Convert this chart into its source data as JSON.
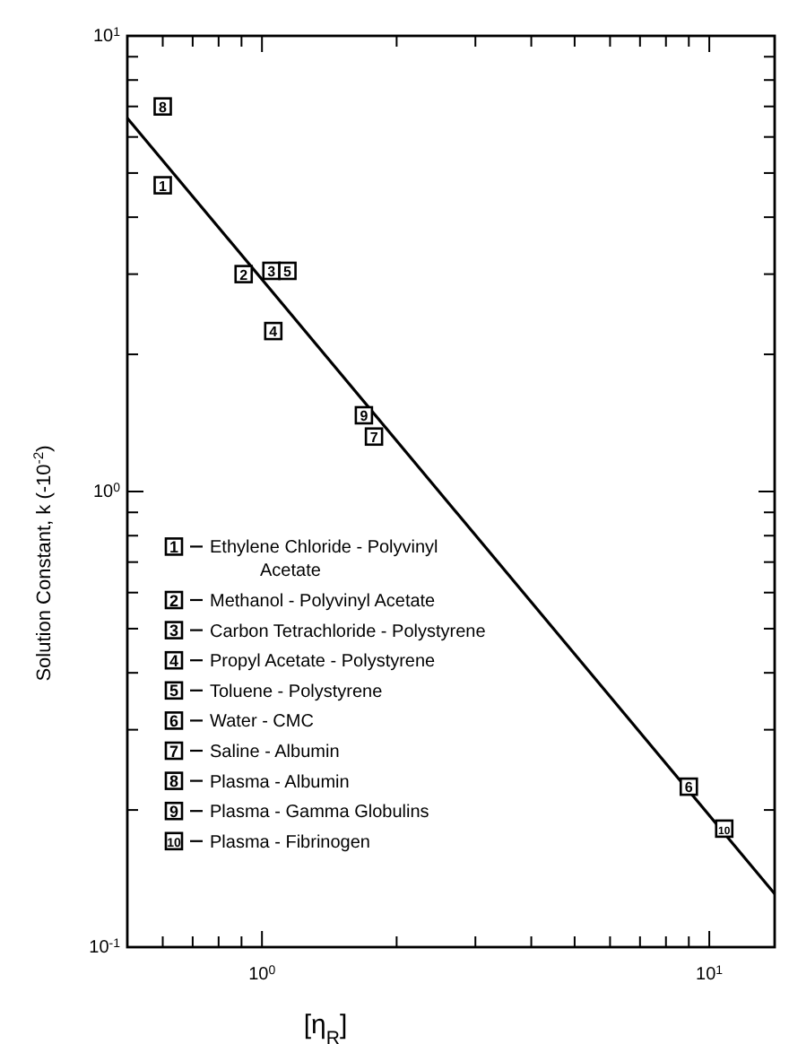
{
  "chart_data": {
    "type": "scatter",
    "xlabel": "[η$_{R}$]",
    "ylabel": "Solution Constant,  k  (-10$^{-2}$)",
    "log": "xy",
    "xlim": [
      0.5,
      14
    ],
    "ylim": [
      0.1,
      10
    ],
    "xticks": [
      {
        "value": 0.5,
        "label": null
      },
      {
        "value": 0.6,
        "label": null
      },
      {
        "value": 0.7,
        "label": null
      },
      {
        "value": 0.8,
        "label": null
      },
      {
        "value": 0.9,
        "label": null
      },
      {
        "value": 1,
        "label": "10$^{0}$"
      },
      {
        "value": 2,
        "label": null
      },
      {
        "value": 3,
        "label": null
      },
      {
        "value": 4,
        "label": null
      },
      {
        "value": 5,
        "label": null
      },
      {
        "value": 6,
        "label": null
      },
      {
        "value": 7,
        "label": null
      },
      {
        "value": 8,
        "label": null
      },
      {
        "value": 9,
        "label": null
      },
      {
        "value": 10,
        "label": "10$^{1}$"
      }
    ],
    "yticks": [
      {
        "value": 0.1,
        "label": "10$^{-1}$"
      },
      {
        "value": 0.2,
        "label": null
      },
      {
        "value": 0.3,
        "label": null
      },
      {
        "value": 0.4,
        "label": null
      },
      {
        "value": 0.5,
        "label": null
      },
      {
        "value": 0.6,
        "label": null
      },
      {
        "value": 0.7,
        "label": null
      },
      {
        "value": 0.8,
        "label": null
      },
      {
        "value": 0.9,
        "label": null
      },
      {
        "value": 1,
        "label": "10$^{0}$"
      },
      {
        "value": 2,
        "label": null
      },
      {
        "value": 3,
        "label": null
      },
      {
        "value": 4,
        "label": null
      },
      {
        "value": 5,
        "label": null
      },
      {
        "value": 6,
        "label": null
      },
      {
        "value": 7,
        "label": null
      },
      {
        "value": 8,
        "label": null
      },
      {
        "value": 9,
        "label": null
      },
      {
        "value": 10,
        "label": "10$^{1}$"
      }
    ],
    "grid": false,
    "legend": "bottom left",
    "marker": "square",
    "annotations": [
      {
        "text": "1",
        "x": 0.6,
        "y": 4.7
      },
      {
        "text": "2",
        "x": 0.91,
        "y": 3.0
      },
      {
        "text": "3",
        "x": 1.05,
        "y": 3.05
      },
      {
        "text": "4",
        "x": 1.06,
        "y": 2.25
      },
      {
        "text": "5",
        "x": 1.14,
        "y": 3.05
      },
      {
        "text": "6",
        "x": 9.0,
        "y": 0.225
      },
      {
        "text": "7",
        "x": 1.78,
        "y": 1.32
      },
      {
        "text": "8",
        "x": 0.6,
        "y": 7.0
      },
      {
        "text": "9",
        "x": 1.69,
        "y": 1.47
      },
      {
        "text": "10",
        "x": 10.8,
        "y": 0.182
      }
    ],
    "series": [
      {
        "name": "Ethylene Chloride - Polyvinyl Acetate",
        "color": "#000000",
        "x": [
          0.6
        ],
        "values": [
          4.7
        ]
      },
      {
        "name": "Methanol - Polyvinyl Acetate",
        "color": "#000000",
        "x": [
          0.91
        ],
        "values": [
          3.0
        ]
      },
      {
        "name": "Carbon Tetrachloride - Polystyrene",
        "color": "#000000",
        "x": [
          1.05
        ],
        "values": [
          3.05
        ]
      },
      {
        "name": "Propyl Acetate - Polystyrene",
        "color": "#000000",
        "x": [
          1.06
        ],
        "values": [
          2.25
        ]
      },
      {
        "name": "Toluene - Polystyrene",
        "color": "#000000",
        "x": [
          1.14
        ],
        "values": [
          3.05
        ]
      },
      {
        "name": "Water - CMC",
        "color": "#000000",
        "x": [
          9.0
        ],
        "values": [
          0.225
        ]
      },
      {
        "name": "Saline - Albumin",
        "color": "#000000",
        "x": [
          1.78
        ],
        "values": [
          1.32
        ]
      },
      {
        "name": "Plasma - Albumin",
        "color": "#000000",
        "x": [
          0.6
        ],
        "values": [
          7.0
        ]
      },
      {
        "name": "Plasma - Gamma Globulins",
        "color": "#000000",
        "x": [
          1.69
        ],
        "values": [
          1.47
        ]
      },
      {
        "name": "Plasma - Fibrinogen",
        "color": "#000000",
        "x": [
          10.8
        ],
        "values": [
          0.182
        ]
      },
      {
        "type": "line",
        "color": "#000000",
        "x": [
          0.5,
          14
        ],
        "values": [
          6.6,
          0.131
        ],
        "marker": "none",
        "line_style": "solid"
      }
    ]
  }
}
